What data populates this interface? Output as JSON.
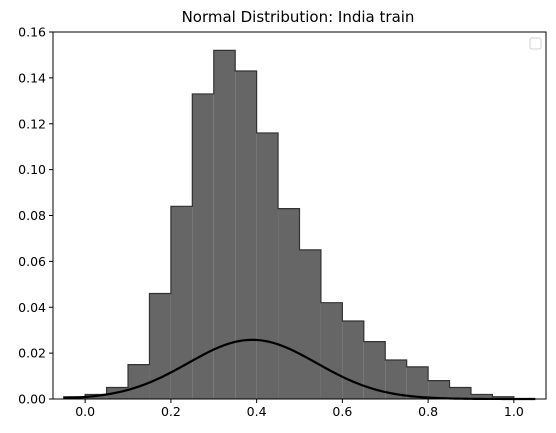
{
  "chart_data": {
    "type": "bar",
    "title": "Normal Distribution: India train",
    "xlabel": "",
    "ylabel": "",
    "xlim": [
      -0.075,
      1.075
    ],
    "ylim": [
      0,
      0.16
    ],
    "x_ticks": [
      "0.0",
      "0.2",
      "0.4",
      "0.6",
      "0.8",
      "1.0"
    ],
    "y_ticks": [
      "0.00",
      "0.02",
      "0.04",
      "0.06",
      "0.08",
      "0.10",
      "0.12",
      "0.14",
      "0.16"
    ],
    "grid": false,
    "legend": "top-right (empty)",
    "histogram": {
      "bin_edges": [
        -0.05,
        0.0,
        0.05,
        0.1,
        0.15,
        0.2,
        0.25,
        0.3,
        0.35,
        0.4,
        0.45,
        0.5,
        0.55,
        0.6,
        0.65,
        0.7,
        0.75,
        0.8,
        0.85,
        0.9,
        0.95,
        1.0
      ],
      "values": [
        0.001,
        0.002,
        0.005,
        0.015,
        0.046,
        0.084,
        0.133,
        0.152,
        0.143,
        0.116,
        0.083,
        0.065,
        0.042,
        0.034,
        0.025,
        0.017,
        0.014,
        0.008,
        0.005,
        0.002,
        0.001
      ],
      "fill_color": "#666666",
      "edge_color": "#333333"
    },
    "curve": {
      "type": "line",
      "mean": 0.39,
      "sd": 0.15,
      "scale": 0.0097,
      "x_range": [
        -0.05,
        1.05
      ],
      "color": "#000000"
    }
  }
}
